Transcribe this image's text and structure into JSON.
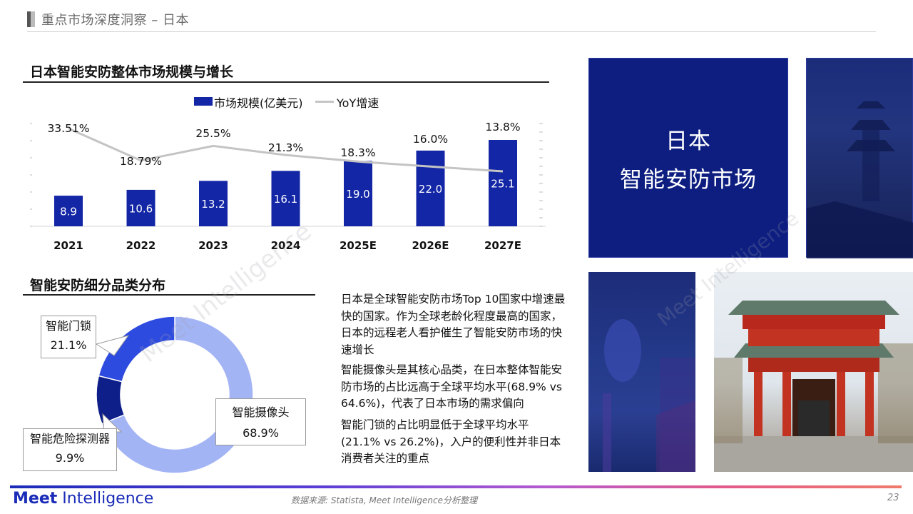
{
  "header": {
    "title": "重点市场深度洞察 – 日本"
  },
  "section1": {
    "title": "日本智能安防整体市场规模与增长"
  },
  "section2": {
    "title": "智能安防细分品类分布"
  },
  "legend": {
    "bar_label": "市场规模(亿美元)",
    "line_label": "YoY增速"
  },
  "chart_data": [
    {
      "type": "bar",
      "title": "日本智能安防整体市场规模与增长",
      "categories": [
        "2021",
        "2022",
        "2023",
        "2024",
        "2025E",
        "2026E",
        "2027E"
      ],
      "series": [
        {
          "name": "市场规模(亿美元)",
          "type": "bar",
          "values": [
            8.9,
            10.6,
            13.2,
            16.1,
            19.0,
            22.0,
            25.1
          ],
          "labels": [
            "8.9",
            "10.6",
            "13.2",
            "16.1",
            "19.0",
            "22.0",
            "25.1"
          ],
          "color": "#1326a6"
        },
        {
          "name": "YoY增速",
          "type": "line",
          "values": [
            33.51,
            18.79,
            25.5,
            21.3,
            18.3,
            16.0,
            13.8
          ],
          "labels": [
            "33.51%",
            "18.79%",
            "25.5%",
            "21.3%",
            "18.3%",
            "16.0%",
            "13.8%"
          ],
          "color": "#c4c4c4"
        }
      ],
      "legend": "top"
    },
    {
      "type": "pie",
      "title": "智能安防细分品类分布",
      "categories": [
        "智能摄像头",
        "智能危险探测器",
        "智能门锁"
      ],
      "values": [
        68.9,
        9.9,
        21.1
      ],
      "labels": [
        "68.9%",
        "9.9%",
        "21.1%"
      ],
      "colors": [
        "#a3b4f5",
        "#0f1f8a",
        "#2e4be0"
      ]
    }
  ],
  "paragraphs": [
    "日本是全球智能安防市场Top 10国家中增速最快的国家。作为全球老龄化程度最高的国家，日本的远程老人看护催生了智能安防市场的快速增长",
    "智能摄像头是其核心品类，在日本整体智能安防市场的占比远高于全球平均水平(68.9% vs 64.6%)，代表了日本市场的需求偏向",
    "智能门锁的占比明显低于全球平均水平(21.1% vs 26.2%)，入户的便利性并非日本消费者关注的重点"
  ],
  "panel": {
    "line1": "日本",
    "line2": "智能安防市场"
  },
  "watermark": "Meet Intelligence",
  "footer": {
    "logo_bold": "Meet",
    "logo_rest": " Intelligence",
    "source": "数据来源: Statista, Meet Intelligence分析整理",
    "page": "23"
  }
}
